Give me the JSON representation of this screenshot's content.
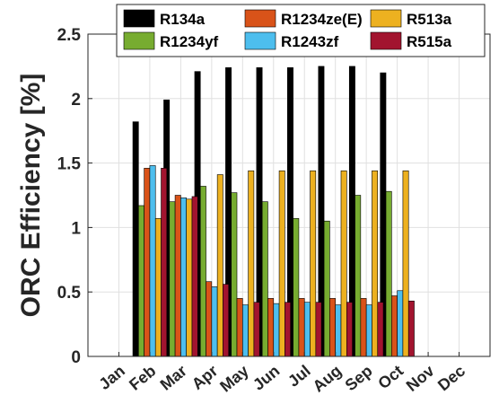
{
  "chart_data": {
    "type": "bar",
    "ylabel": "ORC Efficiency [%]",
    "xlabel": "",
    "ylim": [
      0,
      2.5
    ],
    "yticks": [
      "0",
      "0.5",
      "1",
      "1.5",
      "2",
      "2.5"
    ],
    "categories": [
      "Jan",
      "Feb",
      "Mar",
      "Apr",
      "May",
      "Jun",
      "Jul",
      "Aug",
      "Sep",
      "Oct",
      "Nov",
      "Dec"
    ],
    "grid": true,
    "legend_position": "top",
    "series": [
      {
        "name": "R134a",
        "color": "#000000",
        "values": [
          null,
          1.82,
          1.99,
          2.21,
          2.24,
          2.24,
          2.24,
          2.25,
          2.25,
          2.2,
          null,
          null
        ]
      },
      {
        "name": "R1234yf",
        "color": "#77ac30",
        "values": [
          null,
          1.17,
          1.2,
          1.32,
          1.27,
          1.2,
          1.07,
          1.05,
          1.25,
          1.28,
          null,
          null
        ]
      },
      {
        "name": "R1234ze(E)",
        "color": "#d95319",
        "values": [
          null,
          1.46,
          1.25,
          0.58,
          0.45,
          0.45,
          0.45,
          0.45,
          0.45,
          0.47,
          null,
          null
        ]
      },
      {
        "name": "R1243zf",
        "color": "#4dbeee",
        "values": [
          null,
          1.48,
          1.23,
          0.54,
          0.4,
          0.41,
          0.42,
          0.4,
          0.4,
          0.51,
          null,
          null
        ]
      },
      {
        "name": "R513a",
        "color": "#edb120",
        "values": [
          null,
          1.07,
          1.22,
          1.41,
          1.44,
          1.44,
          1.44,
          1.44,
          1.44,
          1.44,
          null,
          null
        ]
      },
      {
        "name": "R515a",
        "color": "#a2142f",
        "values": [
          null,
          1.46,
          1.24,
          0.56,
          0.42,
          0.42,
          0.42,
          0.42,
          0.42,
          0.43,
          null,
          null
        ]
      }
    ]
  }
}
